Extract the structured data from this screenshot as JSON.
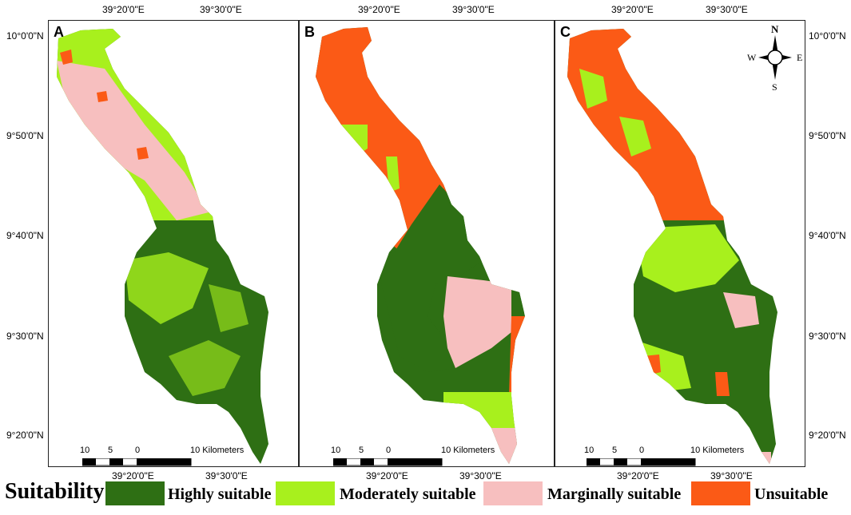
{
  "colors": {
    "highly_suitable": "#2e6f14",
    "moderately_suitable": "#a8f01d",
    "marginally_suitable": "#f7bfbf",
    "unsuitable": "#fb5a16"
  },
  "axes": {
    "top_lon": [
      "39°20'0\"E",
      "39°30'0\"E"
    ],
    "bottom_lon": [
      "39°20'0\"E",
      "39°30'0\"E"
    ],
    "left_lat": [
      "10°0'0\"N",
      "9°50'0\"N",
      "9°40'0\"N",
      "9°30'0\"N",
      "9°20'0\"N"
    ],
    "right_lat": [
      "10°0'0\"N",
      "9°50'0\"N",
      "9°40'0\"N",
      "9°30'0\"N",
      "9°20'0\"N"
    ]
  },
  "panels": [
    {
      "letter": "A"
    },
    {
      "letter": "B"
    },
    {
      "letter": "C"
    }
  ],
  "scalebar": {
    "ticks": [
      "10",
      "5",
      "0"
    ],
    "end_label": "10 Kilometers"
  },
  "north_arrow": {
    "n": "N",
    "s": "S",
    "e": "E",
    "w": "W"
  },
  "legend": {
    "title": "Suitability",
    "items": [
      {
        "label": "Highly suitable",
        "color_key": "highly_suitable"
      },
      {
        "label": "Moderately suitable",
        "color_key": "moderately_suitable"
      },
      {
        "label": "Marginally suitable",
        "color_key": "marginally_suitable"
      },
      {
        "label": "Unsuitable",
        "color_key": "unsuitable"
      }
    ]
  }
}
